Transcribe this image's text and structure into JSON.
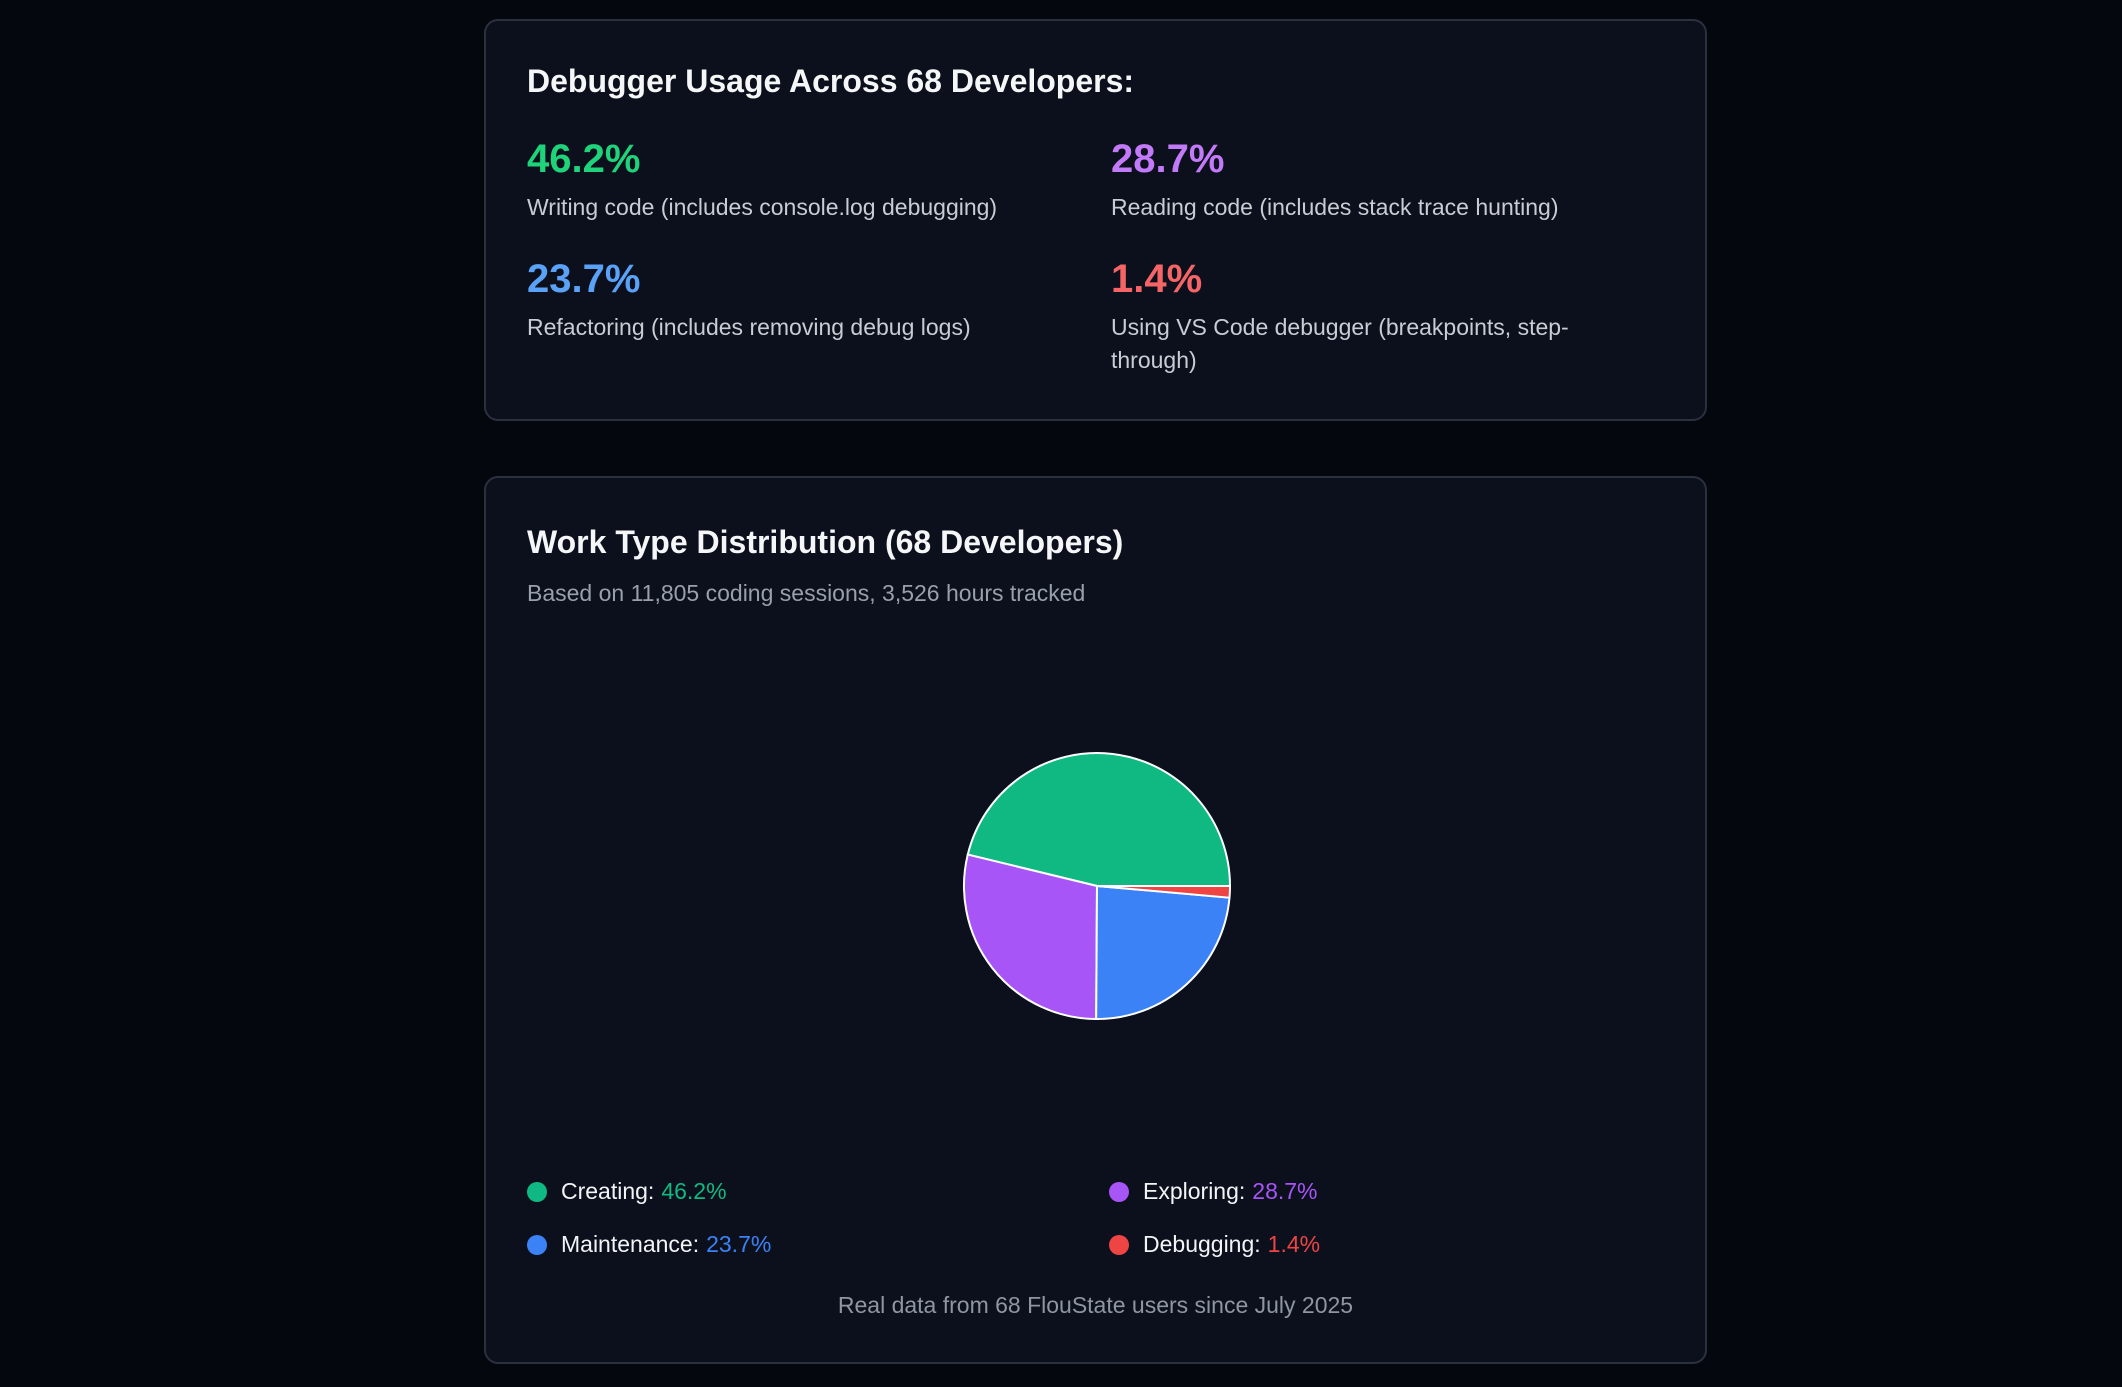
{
  "usage_card": {
    "title": "Debugger Usage Across 68 Developers:",
    "stats": [
      {
        "value": "46.2%",
        "label": "Writing code (includes console.log debugging)",
        "color": "#1fd37a"
      },
      {
        "value": "28.7%",
        "label": "Reading code (includes stack trace hunting)",
        "color": "#c27af9"
      },
      {
        "value": "23.7%",
        "label": "Refactoring (includes removing debug logs)",
        "color": "#5aa2f8"
      },
      {
        "value": "1.4%",
        "label": "Using VS Code debugger (breakpoints, step-through)",
        "color": "#f56565"
      }
    ]
  },
  "distribution_card": {
    "title": "Work Type Distribution (68 Developers)",
    "subtitle": "Based on 11,805 coding sessions, 3,526 hours tracked",
    "footer": "Real data from 68 FlouState users since July 2025"
  },
  "chart_data": {
    "type": "pie",
    "title": "Work Type Distribution (68 Developers)",
    "start": "3 o'clock, counterclockwise",
    "legend_position": "bottom",
    "slices": [
      {
        "label": "Creating",
        "value": 46.2,
        "display": "46.2%",
        "color": "#10b981"
      },
      {
        "label": "Exploring",
        "value": 28.7,
        "display": "28.7%",
        "color": "#a855f7"
      },
      {
        "label": "Maintenance",
        "value": 23.7,
        "display": "23.7%",
        "color": "#3b82f6"
      },
      {
        "label": "Debugging",
        "value": 1.4,
        "display": "1.4%",
        "color": "#ef4444"
      }
    ]
  }
}
